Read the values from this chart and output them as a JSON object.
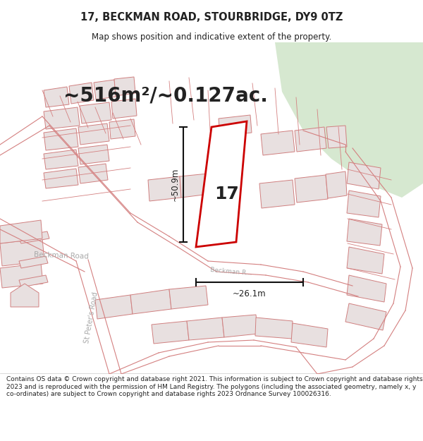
{
  "title": "17, BECKMAN ROAD, STOURBRIDGE, DY9 0TZ",
  "subtitle": "Map shows position and indicative extent of the property.",
  "area_label": "~516m²/~0.127ac.",
  "dim_height": "~50.9m",
  "dim_width": "~26.1m",
  "property_number": "17",
  "footer": "Contains OS data © Crown copyright and database right 2021. This information is subject to Crown copyright and database rights 2023 and is reproduced with the permission of HM Land Registry. The polygons (including the associated geometry, namely x, y co-ordinates) are subject to Crown copyright and database rights 2023 Ordnance Survey 100026316.",
  "bg_map": "#f5eeee",
  "white_bg": "#ffffff",
  "green_color": "#d6e8d0",
  "road_line_color": "#d48080",
  "building_fill": "#e8e0e0",
  "building_edge": "#d08080",
  "plot_edge": "#cc0000",
  "dim_color": "#111111",
  "road_text_color": "#aaaaaa",
  "text_color": "#222222",
  "title_fs": 10.5,
  "subtitle_fs": 8.5,
  "area_fs": 20,
  "footer_fs": 6.5,
  "number_fs": 18
}
